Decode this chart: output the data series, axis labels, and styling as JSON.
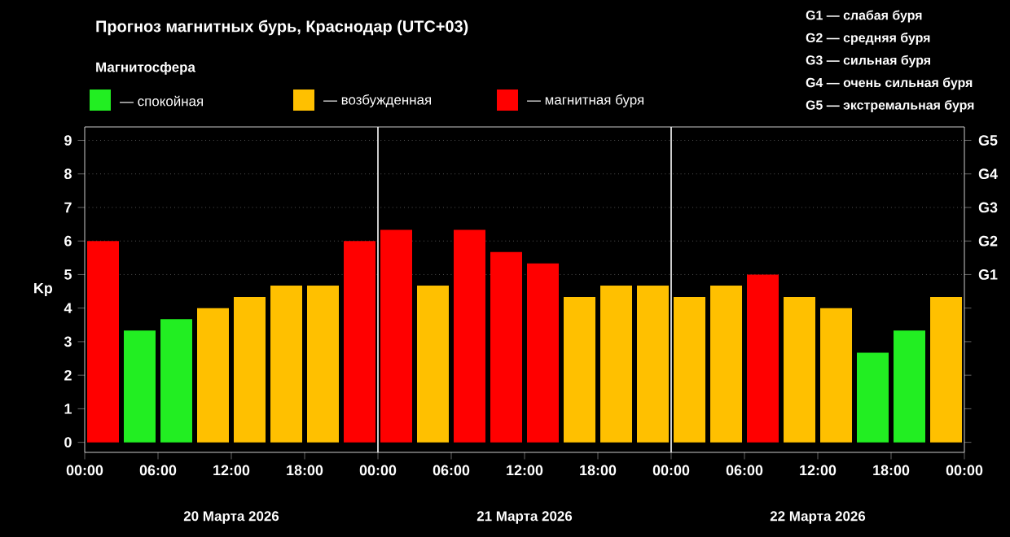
{
  "chart_data": {
    "type": "bar",
    "title": "Прогноз магнитных бурь, Краснодар (UTC+03)",
    "ylabel": "Kp",
    "legend_title": "Магнитосфера",
    "legend": "top left",
    "grid": false,
    "x": [
      "2026-03-20T01:30",
      "2026-03-20T04:30",
      "2026-03-20T07:30",
      "2026-03-20T10:30",
      "2026-03-20T13:30",
      "2026-03-20T16:30",
      "2026-03-20T19:30",
      "2026-03-20T22:30",
      "2026-03-21T01:30",
      "2026-03-21T04:30",
      "2026-03-21T07:30",
      "2026-03-21T10:30",
      "2026-03-21T13:30",
      "2026-03-21T16:30",
      "2026-03-21T19:30",
      "2026-03-21T22:30",
      "2026-03-22T01:30",
      "2026-03-22T04:30",
      "2026-03-22T07:30",
      "2026-03-22T10:30",
      "2026-03-22T13:30",
      "2026-03-22T16:30",
      "2026-03-22T19:30",
      "2026-03-22T22:30"
    ],
    "series": [
      {
        "name": "— спокойная",
        "color": "#22ee22",
        "values": [
          null,
          3.33,
          3.67,
          null,
          null,
          null,
          null,
          null,
          null,
          null,
          null,
          null,
          null,
          null,
          null,
          null,
          null,
          null,
          null,
          null,
          null,
          2.67,
          3.33,
          null
        ]
      },
      {
        "name": "— возбужденная",
        "color": "#ffc000",
        "values": [
          null,
          null,
          null,
          4,
          4.33,
          4.67,
          4.67,
          null,
          null,
          4.67,
          null,
          null,
          null,
          4.33,
          4.67,
          4.67,
          4.33,
          4.67,
          null,
          4.33,
          4,
          null,
          null,
          4.33
        ]
      },
      {
        "name": "— магнитная буря",
        "color": "#ff0000",
        "values": [
          6,
          null,
          null,
          null,
          null,
          null,
          null,
          6,
          6.33,
          null,
          6.33,
          5.67,
          5.33,
          null,
          null,
          null,
          null,
          null,
          5,
          null,
          null,
          null,
          null,
          null
        ]
      }
    ],
    "xlim": [
      "2026-03-20T00:00",
      "2026-03-23T00:00"
    ],
    "xticks": [
      {
        "value": "2026-03-20T00:00",
        "label": "00:00"
      },
      {
        "value": "2026-03-20T06:00",
        "label": "06:00"
      },
      {
        "value": "2026-03-20T12:00",
        "label": "12:00"
      },
      {
        "value": "2026-03-20T18:00",
        "label": "18:00"
      },
      {
        "value": "2026-03-21T00:00",
        "label": "00:00"
      },
      {
        "value": "2026-03-21T06:00",
        "label": "06:00"
      },
      {
        "value": "2026-03-21T12:00",
        "label": "12:00"
      },
      {
        "value": "2026-03-21T18:00",
        "label": "18:00"
      },
      {
        "value": "2026-03-22T00:00",
        "label": "00:00"
      },
      {
        "value": "2026-03-22T06:00",
        "label": "06:00"
      },
      {
        "value": "2026-03-22T12:00",
        "label": "12:00"
      },
      {
        "value": "2026-03-22T18:00",
        "label": "18:00"
      },
      {
        "value": "2026-03-23T00:00",
        "label": "00:00"
      }
    ],
    "ylim": [
      -0.3,
      9.4
    ],
    "yticks": [
      0,
      1,
      2,
      3,
      4,
      5,
      6,
      7,
      8,
      9
    ],
    "ref_lines": [
      {
        "axis": "x",
        "value": "2026-03-21T00:00",
        "color": "#ffffff"
      },
      {
        "axis": "x",
        "value": "2026-03-22T00:00",
        "color": "#ffffff"
      },
      {
        "axis": "y",
        "value": 5,
        "label": "G1",
        "color": "#808080",
        "line_style": "dotted"
      },
      {
        "axis": "y",
        "value": 6,
        "label": "G2",
        "color": "#808080",
        "line_style": "dotted"
      },
      {
        "axis": "y",
        "value": 7,
        "label": "G3",
        "color": "#808080",
        "line_style": "dotted"
      },
      {
        "axis": "y",
        "value": 8,
        "label": "G4",
        "color": "#808080",
        "line_style": "dotted"
      },
      {
        "axis": "y",
        "value": 9,
        "label": "G5",
        "color": "#808080",
        "line_style": "dotted"
      }
    ],
    "annotations": [
      "G1 — слабая буря",
      "G2 — средняя буря",
      "G3 — сильная буря",
      "G4 — очень сильная буря",
      "G5 — экстремальная буря",
      "20 Марта 2026",
      "21 Марта 2026",
      "22 Марта 2026"
    ]
  }
}
